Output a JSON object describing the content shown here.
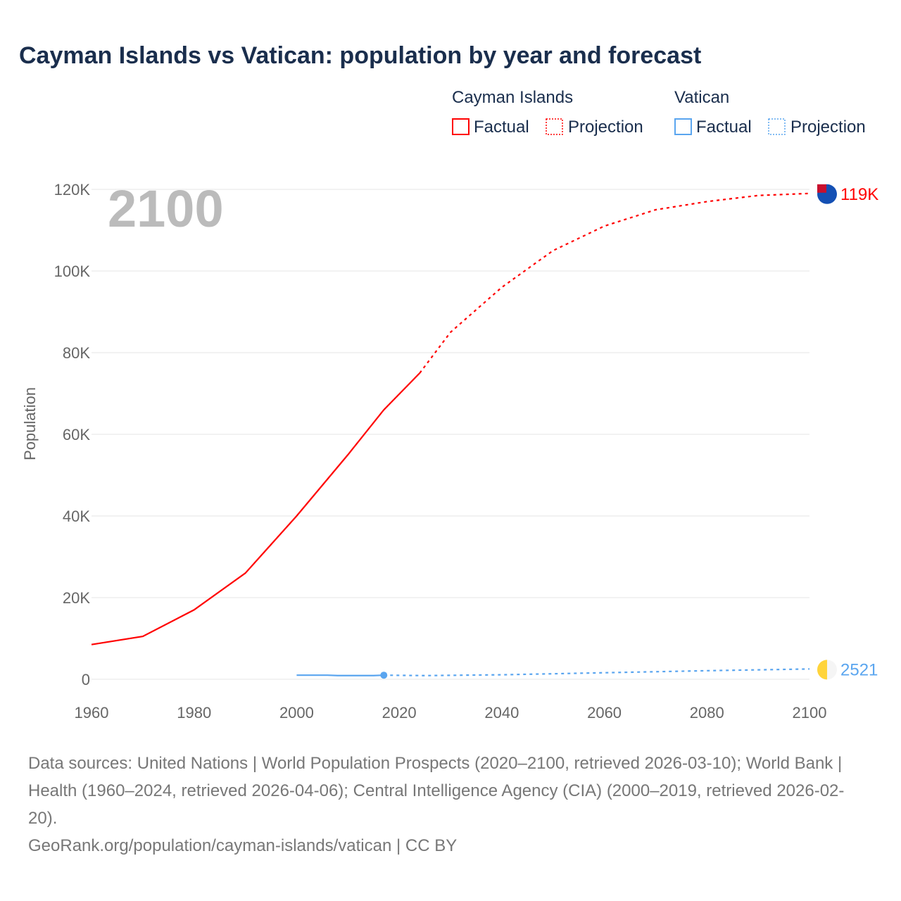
{
  "chart_data": {
    "type": "line",
    "title": "Cayman Islands vs Vatican: population by year and forecast",
    "xlabel": "",
    "ylabel": "Population",
    "xlim": [
      1960,
      2100
    ],
    "ylim": [
      0,
      120000
    ],
    "x_ticks": [
      "1960",
      "1980",
      "2000",
      "2020",
      "2040",
      "2060",
      "2080",
      "2100"
    ],
    "y_ticks": [
      "0",
      "20K",
      "40K",
      "60K",
      "80K",
      "100K",
      "120K"
    ],
    "year_label": "2100",
    "legend": {
      "placement": "top-right",
      "groups": [
        {
          "name": "Cayman Islands",
          "factual": "Factual",
          "projection": "Projection"
        },
        {
          "name": "Vatican",
          "factual": "Factual",
          "projection": "Projection"
        }
      ]
    },
    "series": [
      {
        "name": "Cayman Islands",
        "color": "#ff0000",
        "end_label": "119K",
        "factual": [
          [
            1960,
            8500
          ],
          [
            1970,
            10500
          ],
          [
            1980,
            17000
          ],
          [
            1990,
            26000
          ],
          [
            2000,
            40000
          ],
          [
            2010,
            55000
          ],
          [
            2017,
            66000
          ],
          [
            2024,
            75000
          ]
        ],
        "projection": [
          [
            2024,
            75000
          ],
          [
            2030,
            85000
          ],
          [
            2040,
            96000
          ],
          [
            2050,
            105000
          ],
          [
            2060,
            111000
          ],
          [
            2070,
            115000
          ],
          [
            2080,
            117000
          ],
          [
            2090,
            118500
          ],
          [
            2100,
            119000
          ]
        ]
      },
      {
        "name": "Vatican",
        "color": "#5aa5ef",
        "end_label": "2521",
        "factual": [
          [
            2000,
            1000
          ],
          [
            2006,
            1000
          ],
          [
            2008,
            900
          ],
          [
            2015,
            900
          ],
          [
            2017,
            1000
          ]
        ],
        "projection": [
          [
            2017,
            1000
          ],
          [
            2025,
            900
          ],
          [
            2040,
            1100
          ],
          [
            2060,
            1600
          ],
          [
            2080,
            2100
          ],
          [
            2100,
            2521
          ]
        ]
      }
    ]
  },
  "footer": {
    "sources": "Data sources: United Nations | World Population Prospects (2020–2100, retrieved 2026-03-10); World Bank | Health (1960–2024, retrieved 2026-04-06); Central Intelligence Agency (CIA) (2000–2019, retrieved 2026-02-20).",
    "credit": "GeoRank.org/population/cayman-islands/vatican | CC BY"
  }
}
